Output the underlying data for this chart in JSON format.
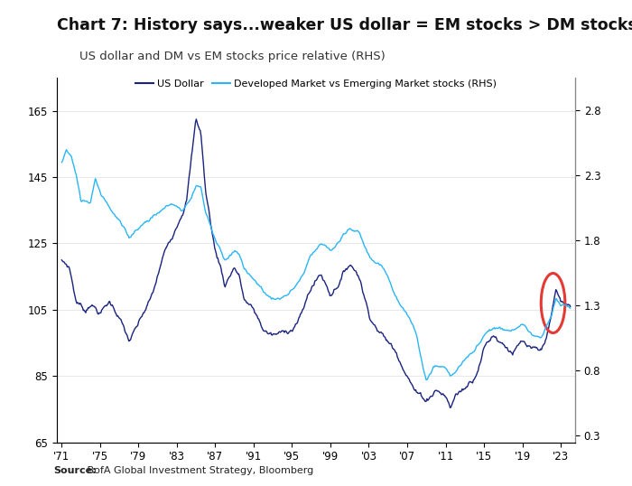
{
  "title": "Chart 7: History says...weaker US dollar = EM stocks > DM stocks",
  "subtitle": "US dollar and DM vs EM stocks price relative (RHS)",
  "source_bold": "Source:",
  "source_rest": " BofA Global Investment Strategy, Bloomberg",
  "left_ylim": [
    65,
    175
  ],
  "right_ylim": [
    0.25,
    3.05
  ],
  "left_yticks": [
    65,
    85,
    105,
    125,
    145,
    165
  ],
  "right_yticks": [
    0.3,
    0.8,
    1.3,
    1.8,
    2.3,
    2.8
  ],
  "xtick_labels": [
    "'71",
    "'75",
    "'79",
    "'83",
    "'87",
    "'91",
    "'95",
    "'99",
    "'03",
    "'07",
    "'11",
    "'15",
    "'19",
    "'23"
  ],
  "xtick_years": [
    1971,
    1975,
    1979,
    1983,
    1987,
    1991,
    1995,
    1999,
    2003,
    2007,
    2011,
    2015,
    2019,
    2023
  ],
  "us_dollar_color": "#1a237e",
  "em_ratio_color": "#29b6f6",
  "circle_color": "#e53935",
  "background_color": "#ffffff",
  "title_fontsize": 12.5,
  "subtitle_fontsize": 9.5,
  "axis_fontsize": 8.5,
  "legend_fontsize": 8,
  "xlim": [
    1970.5,
    2024.5
  ]
}
